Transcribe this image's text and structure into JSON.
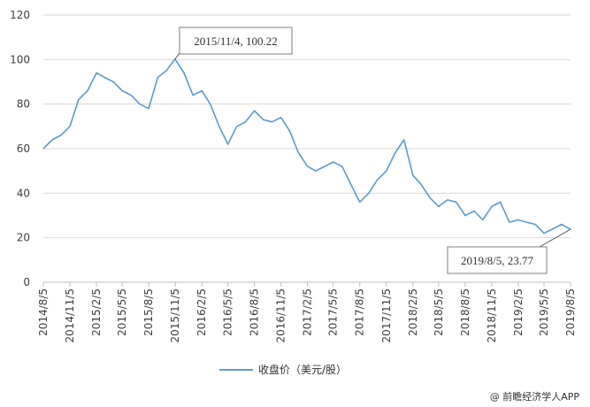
{
  "chart_data": {
    "type": "line",
    "title": "",
    "xlabel": "",
    "ylabel": "",
    "ylim": [
      0,
      120
    ],
    "y_ticks": [
      "0",
      "20",
      "40",
      "60",
      "80",
      "100",
      "120"
    ],
    "x_ticks": [
      "2014/8/5",
      "2014/11/5",
      "2015/2/5",
      "2015/5/5",
      "2015/8/5",
      "2015/11/5",
      "2016/2/5",
      "2016/5/5",
      "2016/8/5",
      "2016/11/5",
      "2017/2/5",
      "2017/5/5",
      "2017/8/5",
      "2017/11/5",
      "2018/2/5",
      "2018/5/5",
      "2018/8/5",
      "2018/11/5",
      "2019/2/5",
      "2019/5/5",
      "2019/8/5"
    ],
    "grid": {
      "horizontal": true,
      "vertical": false
    },
    "legend": {
      "position": "bottom",
      "entries": [
        "收盘价（美元/股）"
      ]
    },
    "series": [
      {
        "name": "收盘价（美元/股）",
        "color": "#5b9bd5",
        "x": [
          "2014/8/5",
          "2014/9/5",
          "2014/10/5",
          "2014/11/5",
          "2014/12/5",
          "2015/1/5",
          "2015/2/5",
          "2015/3/5",
          "2015/4/5",
          "2015/5/5",
          "2015/6/5",
          "2015/7/5",
          "2015/8/5",
          "2015/9/5",
          "2015/10/5",
          "2015/11/4",
          "2015/12/5",
          "2016/1/5",
          "2016/2/5",
          "2016/3/5",
          "2016/4/5",
          "2016/5/5",
          "2016/6/5",
          "2016/7/5",
          "2016/8/5",
          "2016/9/5",
          "2016/10/5",
          "2016/11/5",
          "2016/12/5",
          "2017/1/5",
          "2017/2/5",
          "2017/3/5",
          "2017/4/5",
          "2017/5/5",
          "2017/6/5",
          "2017/7/5",
          "2017/8/5",
          "2017/9/5",
          "2017/10/5",
          "2017/11/5",
          "2017/12/5",
          "2018/1/5",
          "2018/2/5",
          "2018/3/5",
          "2018/4/5",
          "2018/5/5",
          "2018/6/5",
          "2018/7/5",
          "2018/8/5",
          "2018/9/5",
          "2018/10/5",
          "2018/11/5",
          "2018/12/5",
          "2019/1/5",
          "2019/2/5",
          "2019/3/5",
          "2019/4/5",
          "2019/5/5",
          "2019/6/5",
          "2019/7/5",
          "2019/8/5"
        ],
        "values": [
          60,
          64,
          66,
          70,
          82,
          86,
          94,
          92,
          90,
          86,
          84,
          80,
          78,
          92,
          95,
          100.22,
          94,
          84,
          86,
          80,
          70,
          62,
          70,
          72,
          77,
          73,
          72,
          74,
          68,
          58,
          52,
          50,
          52,
          54,
          52,
          44,
          36,
          40,
          46,
          50,
          58,
          64,
          48,
          44,
          38,
          34,
          37,
          36,
          30,
          32,
          28,
          34,
          36,
          27,
          28,
          27,
          26,
          22,
          24,
          26,
          23.77
        ]
      }
    ],
    "annotations": [
      {
        "text": "2015/11/4, 100.22",
        "x": "2015/11/4",
        "y": 100.22
      },
      {
        "text": "2019/8/5, 23.77",
        "x": "2019/8/5",
        "y": 23.77
      }
    ]
  },
  "credit": "@ 前瞻经济学人APP"
}
